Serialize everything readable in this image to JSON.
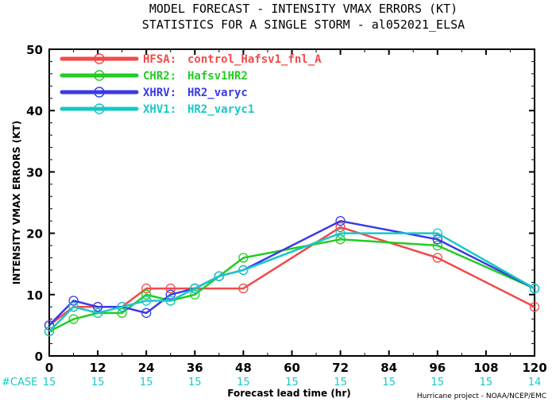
{
  "titles": {
    "line1": "MODEL FORECAST - INTENSITY VMAX ERRORS (KT)",
    "line2": "STATISTICS FOR A SINGLE STORM - al052021_ELSA"
  },
  "case_label": "#CASE",
  "credit": "Hurricane project - NOAA/NCEP/EMC",
  "chart_data": {
    "type": "line",
    "xlabel": "Forecast lead time (hr)",
    "ylabel": "INTENSITY VMAX ERRORS (KT)",
    "xlim": [
      0,
      120
    ],
    "ylim": [
      0,
      50
    ],
    "xticks": [
      0,
      12,
      24,
      36,
      48,
      60,
      72,
      84,
      96,
      108,
      120
    ],
    "yticks": [
      0,
      10,
      20,
      30,
      40,
      50
    ],
    "grid": false,
    "legend_position": "top-left",
    "series": [
      {
        "name": "HFSA:",
        "desc": "control_Hafsv1_fnl_A",
        "color": "#f24a4a",
        "x": [
          0,
          6,
          12,
          18,
          24,
          30,
          36,
          48,
          72,
          96,
          120
        ],
        "y": [
          5,
          8,
          8,
          8,
          11,
          11,
          11,
          11,
          21,
          16,
          8
        ]
      },
      {
        "name": "CHR2:",
        "desc": "Hafsv1HR2",
        "color": "#22cc22",
        "x": [
          0,
          6,
          12,
          18,
          24,
          30,
          36,
          42,
          48,
          72,
          96,
          120
        ],
        "y": [
          4,
          6,
          7,
          7,
          10,
          9,
          10,
          13,
          16,
          19,
          18,
          11
        ]
      },
      {
        "name": "XHRV:",
        "desc": "HR2_varyc",
        "color": "#3a3ae8",
        "x": [
          0,
          6,
          12,
          18,
          24,
          30,
          36,
          42,
          48,
          72,
          96,
          120
        ],
        "y": [
          5,
          9,
          8,
          8,
          7,
          10,
          11,
          13,
          14,
          22,
          19,
          11
        ]
      },
      {
        "name": "XHV1:",
        "desc": "HR2_varyc1",
        "color": "#19c7c7",
        "x": [
          0,
          6,
          12,
          18,
          24,
          30,
          36,
          42,
          48,
          72,
          96,
          120
        ],
        "y": [
          4,
          8,
          7,
          8,
          9,
          9,
          11,
          13,
          14,
          20,
          20,
          11
        ]
      }
    ],
    "cases": {
      "x": [
        0,
        12,
        24,
        36,
        48,
        60,
        72,
        84,
        96,
        108,
        120
      ],
      "values": [
        "15",
        "15",
        "15",
        "15",
        "15",
        "15",
        "15",
        "15",
        "15",
        "15",
        "14"
      ]
    }
  }
}
